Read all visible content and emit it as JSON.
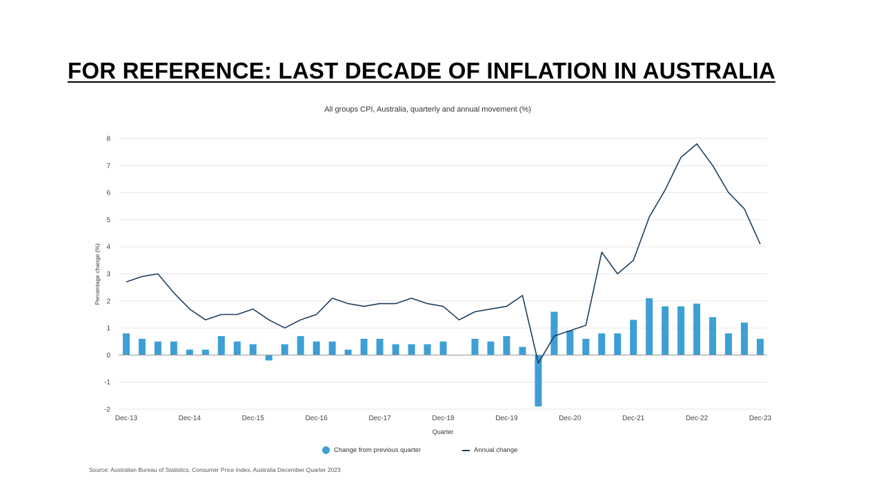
{
  "slide": {
    "title": "FOR REFERENCE: LAST DECADE OF INFLATION IN AUSTRALIA"
  },
  "source": "Source: Australian Bureau of Statistics, Consumer Price Index, Australia December Quarter 2023",
  "colors": {
    "bar": "#3d9fd5",
    "line": "#1b3c5c",
    "grid": "#e6e6e6"
  },
  "chart_data": {
    "type": "bar",
    "title": "All groups CPI, Australia, quarterly and annual movement (%)",
    "xlabel": "Quarter",
    "ylabel": "Percentage change (%)",
    "ylim": [
      -2,
      8
    ],
    "yticks": [
      "-2",
      "-1",
      "0",
      "1",
      "2",
      "3",
      "4",
      "5",
      "6",
      "7",
      "8"
    ],
    "xtick_labels": [
      "Dec-13",
      "Dec-14",
      "Dec-15",
      "Dec-16",
      "Dec-17",
      "Dec-18",
      "Dec-19",
      "Dec-20",
      "Dec-21",
      "Dec-22",
      "Dec-23"
    ],
    "grid": true,
    "legend_position": "bottom",
    "categories": [
      "Dec-13",
      "Mar-14",
      "Jun-14",
      "Sep-14",
      "Dec-14",
      "Mar-15",
      "Jun-15",
      "Sep-15",
      "Dec-15",
      "Mar-16",
      "Jun-16",
      "Sep-16",
      "Dec-16",
      "Mar-17",
      "Jun-17",
      "Sep-17",
      "Dec-17",
      "Mar-18",
      "Jun-18",
      "Sep-18",
      "Dec-18",
      "Mar-19",
      "Jun-19",
      "Sep-19",
      "Dec-19",
      "Mar-20",
      "Jun-20",
      "Sep-20",
      "Dec-20",
      "Mar-21",
      "Jun-21",
      "Sep-21",
      "Dec-21",
      "Mar-22",
      "Jun-22",
      "Sep-22",
      "Dec-22",
      "Mar-23",
      "Jun-23",
      "Sep-23",
      "Dec-23"
    ],
    "series": [
      {
        "name": "Change from previous quarter",
        "type": "bar",
        "values": [
          0.8,
          0.6,
          0.5,
          0.5,
          0.2,
          0.2,
          0.7,
          0.5,
          0.4,
          -0.2,
          0.4,
          0.7,
          0.5,
          0.5,
          0.2,
          0.6,
          0.6,
          0.4,
          0.4,
          0.4,
          0.5,
          0.0,
          0.6,
          0.5,
          0.7,
          0.3,
          -1.9,
          1.6,
          0.9,
          0.6,
          0.8,
          0.8,
          1.3,
          2.1,
          1.8,
          1.8,
          1.9,
          1.4,
          0.8,
          1.2,
          0.6
        ]
      },
      {
        "name": "Annual change",
        "type": "line",
        "values": [
          2.7,
          2.9,
          3.0,
          2.3,
          1.7,
          1.3,
          1.5,
          1.5,
          1.7,
          1.3,
          1.0,
          1.3,
          1.5,
          2.1,
          1.9,
          1.8,
          1.9,
          1.9,
          2.1,
          1.9,
          1.8,
          1.3,
          1.6,
          1.7,
          1.8,
          2.2,
          -0.3,
          0.7,
          0.9,
          1.1,
          3.8,
          3.0,
          3.5,
          5.1,
          6.1,
          7.3,
          7.8,
          7.0,
          6.0,
          5.4,
          4.1
        ]
      }
    ]
  }
}
